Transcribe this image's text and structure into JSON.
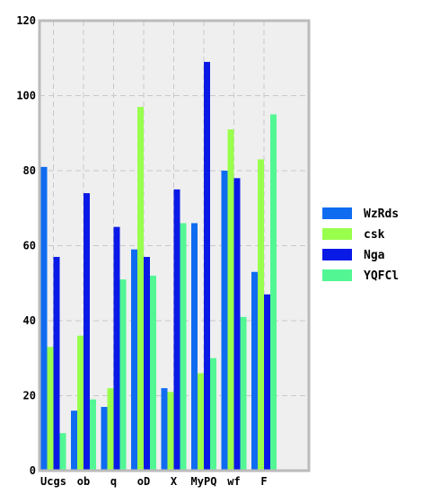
{
  "chart_data": {
    "type": "bar",
    "categories": [
      "Ucgs",
      "ob",
      "q",
      "oD",
      "X",
      "MyPQ",
      "wf",
      "F"
    ],
    "series": [
      {
        "name": "WzRds",
        "color": "#0f6cf0",
        "values": [
          81,
          16,
          17,
          59,
          22,
          66,
          80,
          53
        ]
      },
      {
        "name": "csk",
        "color": "#99ff4d",
        "values": [
          33,
          36,
          22,
          97,
          21,
          26,
          91,
          83
        ]
      },
      {
        "name": "Nga",
        "color": "#0a1ae6",
        "values": [
          57,
          74,
          65,
          57,
          75,
          109,
          78,
          47
        ]
      },
      {
        "name": "YQFCl",
        "color": "#52f794",
        "values": [
          10,
          19,
          51,
          52,
          66,
          30,
          41,
          95
        ]
      }
    ],
    "ylim": [
      0,
      120
    ],
    "yticks": [
      0,
      20,
      40,
      60,
      80,
      100,
      120
    ],
    "grid": true,
    "legend": "right",
    "title": "",
    "xlabel": "",
    "ylabel": ""
  }
}
